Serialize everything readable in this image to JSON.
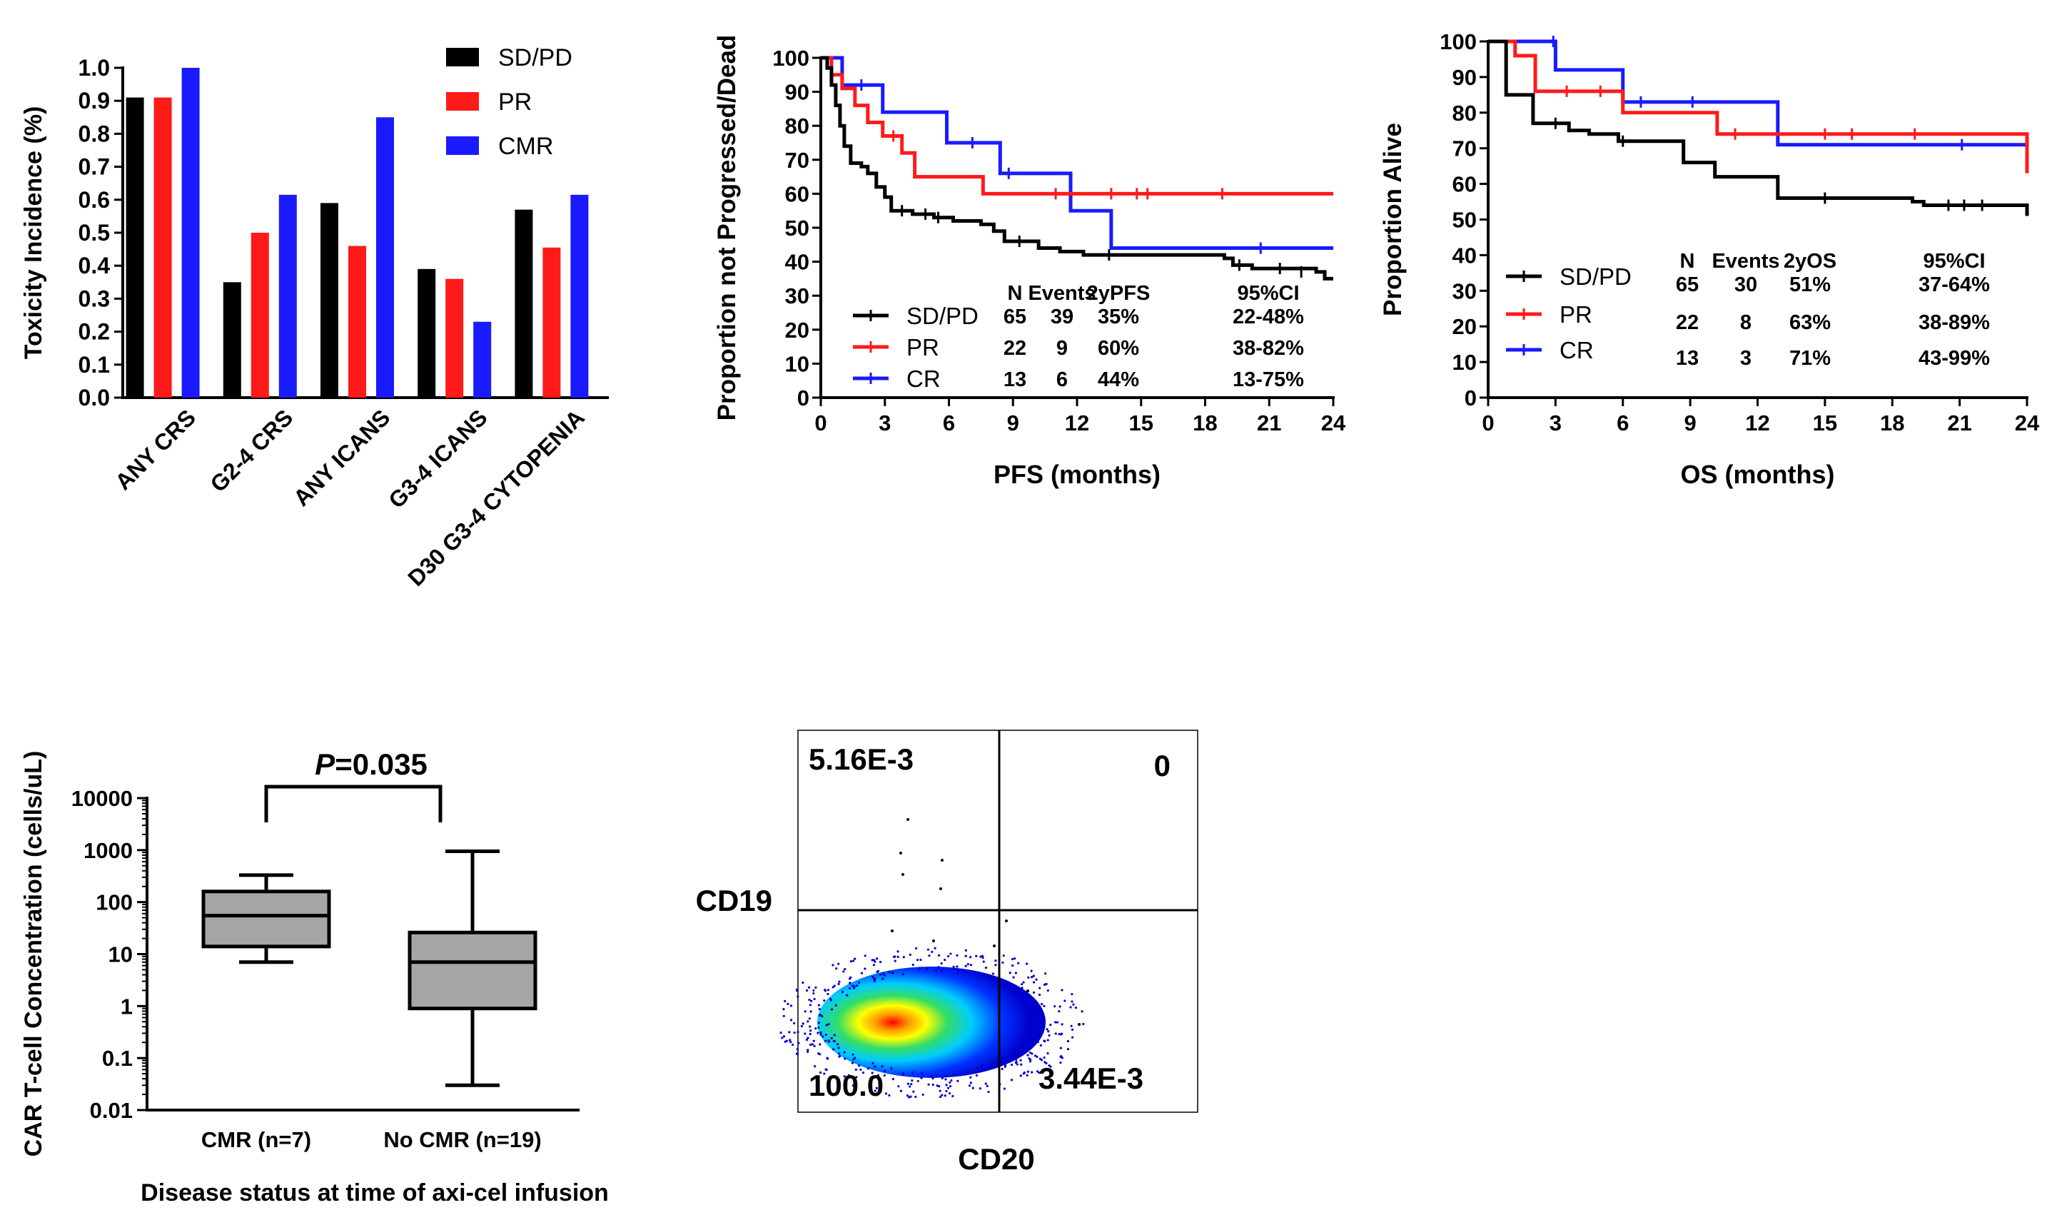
{
  "colors": {
    "black": "#000000",
    "red": "#ff1a1a",
    "blue": "#1a1aff",
    "box": "#a6a6a6"
  },
  "chart_data": [
    {
      "type": "bar",
      "ylabel": "Toxicity Incidence  (%)",
      "ylim": [
        0,
        1.0
      ],
      "yticks": [
        "0.0",
        "0.1",
        "0.2",
        "0.3",
        "0.4",
        "0.5",
        "0.6",
        "0.7",
        "0.8",
        "0.9",
        "1.0"
      ],
      "categories": [
        "ANY CRS",
        "G2-4 CRS",
        "ANY ICANS",
        "G3-4 ICANS",
        "D30 G3-4 CYTOPENIA"
      ],
      "series": [
        {
          "name": "SD/PD",
          "color": "black",
          "values": [
            0.91,
            0.35,
            0.59,
            0.39,
            0.57
          ]
        },
        {
          "name": "PR",
          "color": "red",
          "values": [
            0.91,
            0.5,
            0.46,
            0.36,
            0.455
          ]
        },
        {
          "name": "CMR",
          "color": "blue",
          "values": [
            1.0,
            0.615,
            0.85,
            0.23,
            0.615
          ]
        }
      ],
      "legend": "top-right"
    },
    {
      "type": "line",
      "xlabel": "PFS (months)",
      "ylabel": "Proportion not Progressed/Dead",
      "xlim": [
        0,
        24
      ],
      "ylim": [
        0,
        100
      ],
      "xticks": [
        "0",
        "3",
        "6",
        "9",
        "12",
        "15",
        "18",
        "21",
        "24"
      ],
      "yticks": [
        "0",
        "10",
        "20",
        "30",
        "40",
        "50",
        "60",
        "70",
        "80",
        "90",
        "100"
      ],
      "table_headers": [
        "N",
        "Events",
        "2yPFS",
        "95%CI"
      ],
      "series": [
        {
          "name": "SD/PD",
          "color": "black",
          "stats": [
            "65",
            "39",
            "35%",
            "22-48%"
          ],
          "steps": [
            [
              0,
              100
            ],
            [
              0.3,
              97
            ],
            [
              0.5,
              92
            ],
            [
              0.7,
              86
            ],
            [
              0.9,
              80
            ],
            [
              1.1,
              74
            ],
            [
              1.4,
              69
            ],
            [
              1.9,
              68
            ],
            [
              2.2,
              66
            ],
            [
              2.6,
              62
            ],
            [
              3.0,
              59
            ],
            [
              3.3,
              55
            ],
            [
              4.3,
              54
            ],
            [
              5.3,
              53
            ],
            [
              6.2,
              52
            ],
            [
              7.5,
              51
            ],
            [
              8.1,
              49
            ],
            [
              8.6,
              46
            ],
            [
              10.2,
              44
            ],
            [
              11.2,
              43
            ],
            [
              12.3,
              42
            ],
            [
              18.9,
              41
            ],
            [
              19.3,
              39
            ],
            [
              20.2,
              38
            ],
            [
              23.2,
              37
            ],
            [
              23.6,
              35
            ],
            [
              24,
              35
            ]
          ],
          "censors": [
            [
              3.8,
              55
            ],
            [
              4.9,
              54
            ],
            [
              5.5,
              53
            ],
            [
              9.3,
              46
            ],
            [
              13.5,
              42
            ],
            [
              19.6,
              39
            ],
            [
              21.5,
              38
            ],
            [
              22.5,
              37
            ]
          ]
        },
        {
          "name": "PR",
          "color": "red",
          "stats": [
            "22",
            "9",
            "60%",
            "38-82%"
          ],
          "steps": [
            [
              0,
              100
            ],
            [
              0.5,
              95
            ],
            [
              1.0,
              91
            ],
            [
              1.6,
              86
            ],
            [
              2.2,
              81
            ],
            [
              2.9,
              77
            ],
            [
              3.8,
              72
            ],
            [
              4.4,
              65
            ],
            [
              7.6,
              60
            ],
            [
              24,
              60
            ]
          ],
          "censors": [
            [
              3.4,
              77
            ],
            [
              11.0,
              60
            ],
            [
              13.6,
              60
            ],
            [
              14.8,
              60
            ],
            [
              15.3,
              60
            ],
            [
              18.8,
              60
            ]
          ]
        },
        {
          "name": "CR",
          "color": "blue",
          "stats": [
            "13",
            "6",
            "44%",
            "13-75%"
          ],
          "steps": [
            [
              0,
              100
            ],
            [
              1.0,
              92
            ],
            [
              2.9,
              84
            ],
            [
              5.9,
              75
            ],
            [
              8.4,
              66
            ],
            [
              11.7,
              55
            ],
            [
              13.6,
              44
            ],
            [
              24,
              44
            ]
          ],
          "censors": [
            [
              1.9,
              92
            ],
            [
              7.1,
              75
            ],
            [
              8.8,
              66
            ],
            [
              20.6,
              44
            ]
          ]
        }
      ]
    },
    {
      "type": "line",
      "xlabel": "OS (months)",
      "ylabel": "Proportion Alive",
      "xlim": [
        0,
        24
      ],
      "ylim": [
        0,
        100
      ],
      "xticks": [
        "0",
        "3",
        "6",
        "9",
        "12",
        "15",
        "18",
        "21",
        "24"
      ],
      "yticks": [
        "0",
        "10",
        "20",
        "30",
        "40",
        "50",
        "60",
        "70",
        "80",
        "90",
        "100"
      ],
      "table_headers": [
        "N",
        "Events",
        "2yOS",
        "95%CI"
      ],
      "series": [
        {
          "name": "SD/PD",
          "color": "black",
          "stats": [
            "65",
            "30",
            "51%",
            "37-64%"
          ],
          "steps": [
            [
              0,
              100
            ],
            [
              0.8,
              85
            ],
            [
              2.0,
              77
            ],
            [
              3.6,
              75
            ],
            [
              4.5,
              74
            ],
            [
              5.8,
              72
            ],
            [
              8.7,
              66
            ],
            [
              10.1,
              62
            ],
            [
              12.9,
              56
            ],
            [
              18.9,
              55
            ],
            [
              19.4,
              54
            ],
            [
              23.8,
              54
            ],
            [
              24,
              51
            ]
          ],
          "censors": [
            [
              3.0,
              77
            ],
            [
              6.0,
              72
            ],
            [
              15.0,
              56
            ],
            [
              20.5,
              54
            ],
            [
              21.2,
              54
            ],
            [
              22.0,
              54
            ]
          ]
        },
        {
          "name": "PR",
          "color": "red",
          "stats": [
            "22",
            "8",
            "63%",
            "38-89%"
          ],
          "steps": [
            [
              0,
              100
            ],
            [
              1.2,
              96
            ],
            [
              2.1,
              86
            ],
            [
              6.0,
              80
            ],
            [
              10.2,
              74
            ],
            [
              23.9,
              74
            ],
            [
              24,
              63
            ]
          ],
          "censors": [
            [
              3.5,
              86
            ],
            [
              5.0,
              86
            ],
            [
              11.0,
              74
            ],
            [
              15.0,
              74
            ],
            [
              16.2,
              74
            ],
            [
              19.0,
              74
            ]
          ]
        },
        {
          "name": "CR",
          "color": "blue",
          "stats": [
            "13",
            "3",
            "71%",
            "43-99%"
          ],
          "steps": [
            [
              0,
              100
            ],
            [
              3.0,
              92
            ],
            [
              6.0,
              83
            ],
            [
              12.9,
              71
            ],
            [
              24,
              71
            ]
          ],
          "censors": [
            [
              2.9,
              100
            ],
            [
              6.8,
              83
            ],
            [
              9.1,
              83
            ],
            [
              21.1,
              71
            ]
          ]
        }
      ]
    },
    {
      "type": "box",
      "xlabel": "Disease status at time of axi-cel infusion",
      "ylabel": "CAR T-cell Concentration (cells/uL)",
      "scale": "log",
      "yticks": [
        "0.01",
        "0.1",
        "1",
        "10",
        "100",
        "1000",
        "10000"
      ],
      "annotation": "=0.035",
      "annotation_italic": "P",
      "groups": [
        {
          "name": "CMR (n=7)",
          "whisker_low": 7,
          "q1": 14,
          "median": 55,
          "q3": 160,
          "whisker_high": 330
        },
        {
          "name": "No CMR (n=19)",
          "whisker_low": 0.03,
          "q1": 0.9,
          "median": 7,
          "q3": 26,
          "whisker_high": 950
        }
      ]
    },
    {
      "type": "scatter",
      "xlabel": "CD20",
      "ylabel": "CD19",
      "quadrants": {
        "upper_left": "5.16E-3",
        "upper_right": "0",
        "lower_left": "100.0",
        "lower_right": "3.44E-3"
      }
    }
  ]
}
